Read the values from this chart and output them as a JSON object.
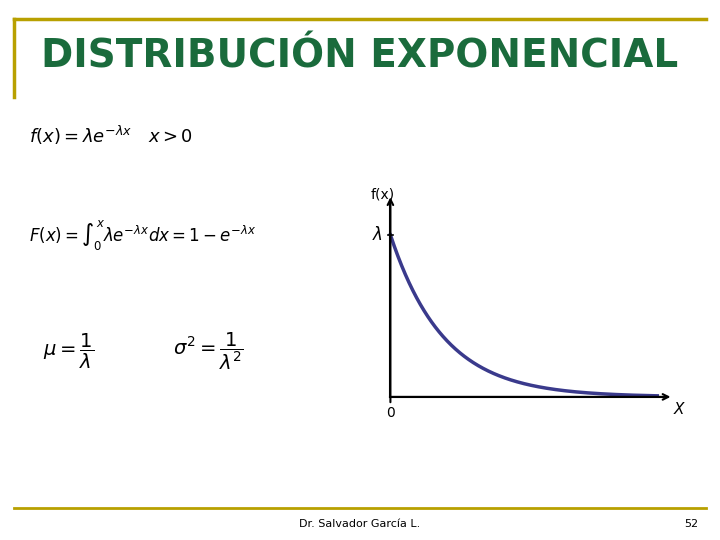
{
  "title": "DISTRIBUCIÓN EXPONENCIAL",
  "title_color": "#1a6b3c",
  "title_fontsize": 28,
  "bg_color": "#ffffff",
  "border_color": "#b8a000",
  "footer_text": "Dr. Salvador García L.",
  "footer_number": "52",
  "curve_color": "#3a3a8c",
  "curve_linewidth": 2.5,
  "eq1": "$f(x) = \\lambda e^{-\\lambda x} \\quad x > 0$",
  "eq2": "$F(x) = \\int_0^x \\lambda e^{-\\lambda x}dx = 1 - e^{-\\lambda x}$",
  "eq3_mu": "$\\mu = \\dfrac{1}{\\lambda}$",
  "eq3_sigma": "$\\sigma^2 = \\dfrac{1}{\\lambda^2}$",
  "xlabel": "X",
  "ylabel": "f(x)",
  "lambda_label": "$\\lambda$",
  "origin_label": "0"
}
